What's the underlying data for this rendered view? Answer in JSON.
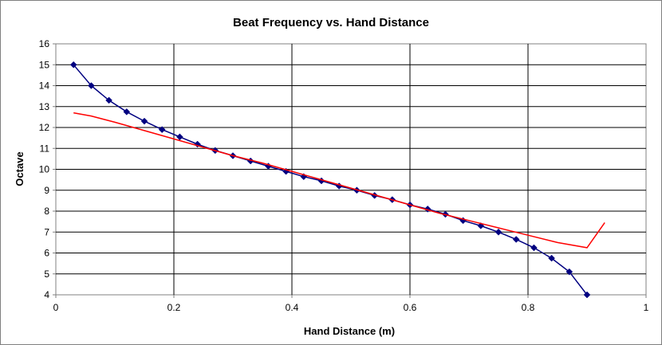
{
  "chart_data": {
    "type": "line",
    "title": "Beat Frequency vs. Hand Distance",
    "xlabel": "Hand Distance (m)",
    "ylabel": "Octave",
    "xlim": [
      0,
      1
    ],
    "ylim": [
      4,
      16
    ],
    "x_ticks": [
      "0",
      "0.2",
      "0.4",
      "0.6",
      "0.8",
      "1"
    ],
    "y_ticks": [
      "4",
      "5",
      "6",
      "7",
      "8",
      "9",
      "10",
      "11",
      "12",
      "13",
      "14",
      "15",
      "16"
    ],
    "grid": true,
    "legend": "none",
    "series": [
      {
        "color": "#000080",
        "marker": "diamond",
        "x": [
          0.03,
          0.06,
          0.09,
          0.12,
          0.15,
          0.18,
          0.21,
          0.24,
          0.27,
          0.3,
          0.33,
          0.36,
          0.39,
          0.42,
          0.45,
          0.48,
          0.51,
          0.54,
          0.57,
          0.6,
          0.63,
          0.66,
          0.69,
          0.72,
          0.75,
          0.78,
          0.81,
          0.84,
          0.87,
          0.9
        ],
        "y": [
          15.0,
          14.0,
          13.3,
          12.75,
          12.3,
          11.9,
          11.55,
          11.2,
          10.9,
          10.65,
          10.4,
          10.15,
          9.9,
          9.65,
          9.45,
          9.2,
          9.0,
          8.75,
          8.55,
          8.3,
          8.1,
          7.85,
          7.55,
          7.3,
          7.0,
          6.65,
          6.25,
          5.75,
          5.1,
          4.0
        ]
      },
      {
        "color": "#ff0000",
        "marker": "none",
        "x": [
          0.03,
          0.06,
          0.1,
          0.15,
          0.2,
          0.25,
          0.3,
          0.35,
          0.4,
          0.45,
          0.5,
          0.55,
          0.6,
          0.65,
          0.7,
          0.75,
          0.8,
          0.85,
          0.9,
          0.93
        ],
        "y": [
          12.7,
          12.55,
          12.25,
          11.85,
          11.45,
          11.05,
          10.65,
          10.3,
          9.9,
          9.5,
          9.1,
          8.7,
          8.3,
          7.9,
          7.55,
          7.2,
          6.85,
          6.5,
          6.25,
          7.45
        ]
      }
    ]
  }
}
